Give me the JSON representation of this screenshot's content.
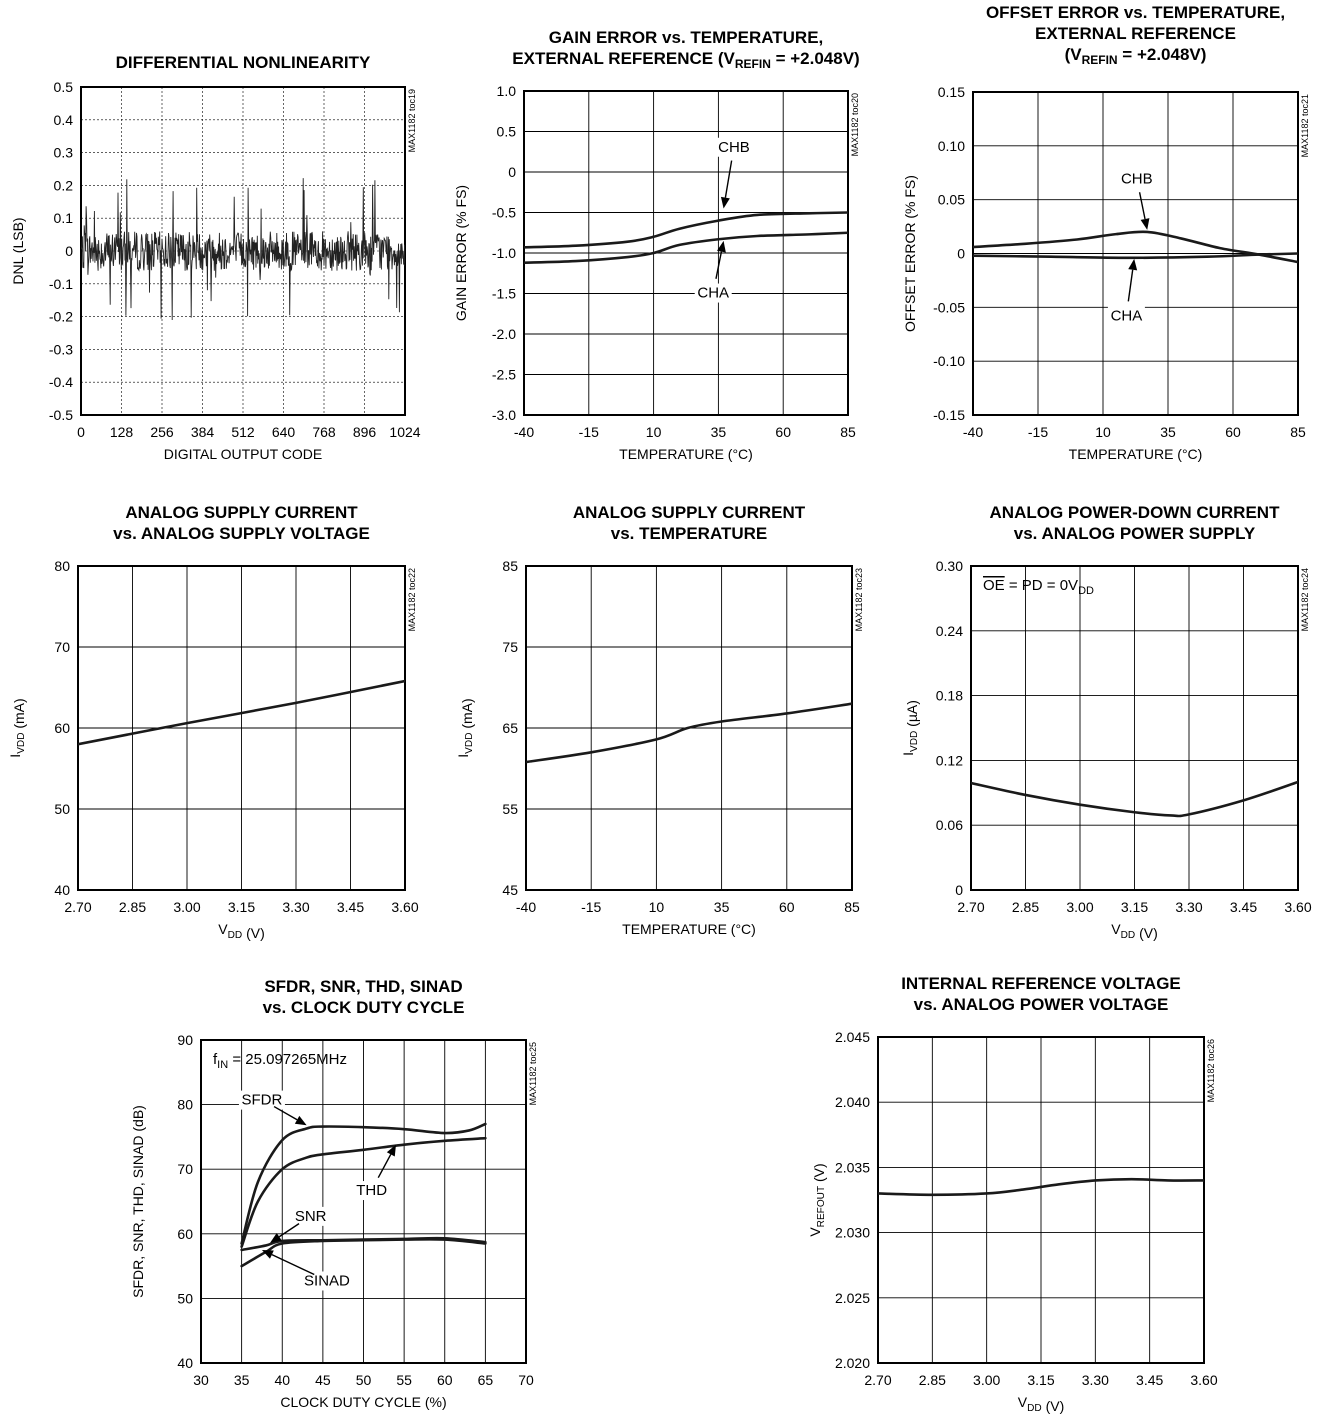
{
  "chart_data": [
    {
      "type": "line",
      "title": [
        "DIFFERENTIAL NONLINEARITY"
      ],
      "xlabel": "DIGITAL OUTPUT CODE",
      "ylabel": "DNL (LSB)",
      "xlim": [
        0,
        1024
      ],
      "ylim": [
        -0.5,
        0.5
      ],
      "xticks": [
        0,
        128,
        256,
        384,
        512,
        640,
        768,
        896,
        1024
      ],
      "xtick_labels": [
        "0",
        "128",
        "256",
        "384",
        "512",
        "640",
        "768",
        "896",
        "1024"
      ],
      "yticks": [
        -0.5,
        -0.4,
        -0.3,
        -0.2,
        -0.1,
        0,
        0.1,
        0.2,
        0.3,
        0.4,
        0.5
      ],
      "ytick_labels": [
        "-0.5",
        "-0.4",
        "-0.3",
        "-0.2",
        "-0.1",
        "0",
        "0.1",
        "0.2",
        "0.3",
        "0.4",
        "0.5"
      ],
      "grid": "dotted",
      "side_label": "MAX1182 toc19",
      "noise_band": {
        "typical_amplitude": 0.06,
        "max": 0.25,
        "min": -0.25
      }
    },
    {
      "type": "line",
      "title": [
        "GAIN ERROR vs. TEMPERATURE,",
        "EXTERNAL REFERENCE (VREFIN = +2.048V)"
      ],
      "xlabel": "TEMPERATURE (°C)",
      "ylabel": "GAIN ERROR (% FS)",
      "xlim": [
        -40,
        85
      ],
      "ylim": [
        -3.0,
        1.0
      ],
      "xticks": [
        -40,
        -15,
        10,
        35,
        60,
        85
      ],
      "xtick_labels": [
        "-40",
        "-15",
        "10",
        "35",
        "60",
        "85"
      ],
      "yticks": [
        -3.0,
        -2.5,
        -2.0,
        -1.5,
        -1.0,
        -0.5,
        0,
        0.5,
        1.0
      ],
      "ytick_labels": [
        "-3.0",
        "-2.5",
        "-2.0",
        "-1.5",
        "-1.0",
        "-0.5",
        "0",
        "0.5",
        "1.0"
      ],
      "grid": "solid",
      "side_label": "MAX1182 toc20",
      "series": [
        {
          "name": "CHB",
          "x": [
            -40,
            -20,
            0,
            10,
            20,
            35,
            50,
            70,
            85
          ],
          "values": [
            -0.93,
            -0.91,
            -0.86,
            -0.8,
            -0.7,
            -0.6,
            -0.53,
            -0.51,
            -0.5
          ]
        },
        {
          "name": "CHA",
          "x": [
            -40,
            -20,
            0,
            10,
            20,
            35,
            50,
            70,
            85
          ],
          "values": [
            -1.12,
            -1.1,
            -1.05,
            -1.0,
            -0.9,
            -0.83,
            -0.79,
            -0.77,
            -0.75
          ]
        }
      ],
      "annotations": [
        {
          "text": "CHB",
          "at": [
            41,
            0.25
          ],
          "arrow_to": [
            37,
            -0.45
          ]
        },
        {
          "text": "CHA",
          "at": [
            33,
            -1.55
          ],
          "arrow_to": [
            37,
            -0.85
          ]
        }
      ]
    },
    {
      "type": "line",
      "title": [
        "OFFSET ERROR vs. TEMPERATURE,",
        "EXTERNAL REFERENCE",
        "(VREFIN = +2.048V)"
      ],
      "xlabel": "TEMPERATURE (°C)",
      "ylabel": "OFFSET ERROR (% FS)",
      "xlim": [
        -40,
        85
      ],
      "ylim": [
        -0.15,
        0.15
      ],
      "xticks": [
        -40,
        -15,
        10,
        35,
        60,
        85
      ],
      "xtick_labels": [
        "-40",
        "-15",
        "10",
        "35",
        "60",
        "85"
      ],
      "yticks": [
        -0.15,
        -0.1,
        -0.05,
        0,
        0.05,
        0.1,
        0.15
      ],
      "ytick_labels": [
        "-0.15",
        "-0.10",
        "-0.05",
        "0",
        "0.05",
        "0.10",
        "0.15"
      ],
      "grid": "solid",
      "side_label": "MAX1182 toc21",
      "series": [
        {
          "name": "CHB",
          "x": [
            -40,
            -20,
            0,
            15,
            27,
            40,
            55,
            70,
            85
          ],
          "values": [
            0.006,
            0.009,
            0.013,
            0.018,
            0.02,
            0.014,
            0.005,
            -0.001,
            -0.008
          ]
        },
        {
          "name": "CHA",
          "x": [
            -40,
            -10,
            20,
            50,
            70,
            85
          ],
          "values": [
            -0.002,
            -0.003,
            -0.004,
            -0.003,
            -0.001,
            0.0
          ]
        }
      ],
      "annotations": [
        {
          "text": "CHB",
          "at": [
            23,
            0.065
          ],
          "arrow_to": [
            27,
            0.022
          ]
        },
        {
          "text": "CHA",
          "at": [
            19,
            -0.062
          ],
          "arrow_to": [
            22,
            -0.005
          ]
        }
      ]
    },
    {
      "type": "line",
      "title": [
        "ANALOG SUPPLY CURRENT",
        "vs. ANALOG SUPPLY VOLTAGE"
      ],
      "xlabel": "VDD (V)",
      "ylabel": "IVDD (mA)",
      "xlim": [
        2.7,
        3.6
      ],
      "ylim": [
        40,
        80
      ],
      "xticks": [
        2.7,
        2.85,
        3.0,
        3.15,
        3.3,
        3.45,
        3.6
      ],
      "xtick_labels": [
        "2.70",
        "2.85",
        "3.00",
        "3.15",
        "3.30",
        "3.45",
        "3.60"
      ],
      "yticks": [
        40,
        50,
        60,
        70,
        80
      ],
      "ytick_labels": [
        "40",
        "50",
        "60",
        "70",
        "80"
      ],
      "grid": "solid",
      "side_label": "MAX1182 toc22",
      "series": [
        {
          "x": [
            2.7,
            3.0,
            3.3,
            3.6
          ],
          "values": [
            58.0,
            60.6,
            63.1,
            65.8
          ]
        }
      ]
    },
    {
      "type": "line",
      "title": [
        "ANALOG SUPPLY CURRENT",
        "vs. TEMPERATURE"
      ],
      "xlabel": "TEMPERATURE (°C)",
      "ylabel": "IVDD (mA)",
      "xlim": [
        -40,
        85
      ],
      "ylim": [
        45,
        85
      ],
      "xticks": [
        -40,
        -15,
        10,
        35,
        60,
        85
      ],
      "xtick_labels": [
        "-40",
        "-15",
        "10",
        "35",
        "60",
        "85"
      ],
      "yticks": [
        45,
        55,
        65,
        75,
        85
      ],
      "ytick_labels": [
        "45",
        "55",
        "65",
        "75",
        "85"
      ],
      "grid": "solid",
      "side_label": "MAX1182 toc23",
      "series": [
        {
          "x": [
            -40,
            -15,
            10,
            22,
            35,
            60,
            85
          ],
          "values": [
            60.8,
            62.0,
            63.6,
            65.0,
            65.8,
            66.8,
            68.0
          ]
        }
      ]
    },
    {
      "type": "line",
      "title": [
        "ANALOG POWER-DOWN CURRENT",
        "vs. ANALOG POWER SUPPLY"
      ],
      "xlabel": "VDD (V)",
      "ylabel": "IVDD (µA)",
      "xlim": [
        2.7,
        3.6
      ],
      "ylim": [
        0,
        0.3
      ],
      "xticks": [
        2.7,
        2.85,
        3.0,
        3.15,
        3.3,
        3.45,
        3.6
      ],
      "xtick_labels": [
        "2.70",
        "2.85",
        "3.00",
        "3.15",
        "3.30",
        "3.45",
        "3.60"
      ],
      "yticks": [
        0,
        0.06,
        0.12,
        0.18,
        0.24,
        0.3
      ],
      "ytick_labels": [
        "0",
        "0.06",
        "0.12",
        "0.18",
        "0.24",
        "0.30"
      ],
      "grid": "solid",
      "side_label": "MAX1182 toc24",
      "condition": "OE = PD = 0VDD",
      "series": [
        {
          "x": [
            2.7,
            2.85,
            3.0,
            3.15,
            3.25,
            3.3,
            3.45,
            3.6
          ],
          "values": [
            0.099,
            0.088,
            0.079,
            0.072,
            0.069,
            0.07,
            0.083,
            0.1
          ]
        }
      ]
    },
    {
      "type": "line",
      "title": [
        "SFDR, SNR, THD, SINAD",
        "vs. CLOCK DUTY CYCLE"
      ],
      "xlabel": "CLOCK DUTY CYCLE (%)",
      "ylabel": "SFDR, SNR, THD, SINAD (dB)",
      "xlim": [
        30,
        70
      ],
      "ylim": [
        40,
        90
      ],
      "xticks": [
        30,
        35,
        40,
        45,
        50,
        55,
        60,
        65,
        70
      ],
      "xtick_labels": [
        "30",
        "35",
        "40",
        "45",
        "50",
        "55",
        "60",
        "65",
        "70"
      ],
      "yticks": [
        40,
        50,
        60,
        70,
        80,
        90
      ],
      "ytick_labels": [
        "40",
        "50",
        "60",
        "70",
        "80",
        "90"
      ],
      "grid": "solid",
      "side_label": "MAX1182 toc25",
      "condition": "fIN = 25.097265MHz",
      "series": [
        {
          "name": "SFDR",
          "x": [
            35,
            37,
            40,
            43,
            45,
            50,
            55,
            60,
            63,
            65
          ],
          "values": [
            58.5,
            68,
            74.5,
            76.3,
            76.6,
            76.5,
            76.2,
            75.6,
            76.0,
            77.0
          ]
        },
        {
          "name": "THD",
          "x": [
            35,
            37,
            40,
            43,
            45,
            50,
            55,
            60,
            65
          ],
          "values": [
            58,
            65,
            70,
            71.8,
            72.3,
            73.0,
            73.8,
            74.4,
            74.8
          ]
        },
        {
          "name": "SNR",
          "x": [
            35,
            38,
            40,
            45,
            50,
            55,
            60,
            65
          ],
          "values": [
            57.5,
            58.2,
            58.9,
            59.0,
            59.1,
            59.2,
            59.3,
            58.7
          ]
        },
        {
          "name": "SINAD",
          "x": [
            35,
            38,
            40,
            45,
            50,
            55,
            60,
            65
          ],
          "values": [
            55.0,
            57.2,
            58.5,
            58.9,
            59.0,
            59.1,
            59.1,
            58.5
          ]
        }
      ],
      "annotations": [
        {
          "text": "SFDR",
          "at": [
            37.5,
            80
          ],
          "arrow_to": [
            43,
            76.8
          ]
        },
        {
          "text": "THD",
          "at": [
            51,
            66
          ],
          "arrow_to": [
            54,
            73.8
          ]
        },
        {
          "text": "SNR",
          "at": [
            43.5,
            62
          ],
          "arrow_to": [
            38.5,
            58.6
          ]
        },
        {
          "text": "SINAD",
          "at": [
            45.5,
            52
          ],
          "arrow_to": [
            37.5,
            57.5
          ]
        }
      ]
    },
    {
      "type": "line",
      "title": [
        "INTERNAL REFERENCE VOLTAGE",
        "vs. ANALOG POWER VOLTAGE"
      ],
      "xlabel": "VDD (V)",
      "ylabel": "VREFOUT (V)",
      "xlim": [
        2.7,
        3.6
      ],
      "ylim": [
        2.02,
        2.045
      ],
      "xticks": [
        2.7,
        2.85,
        3.0,
        3.15,
        3.3,
        3.45,
        3.6
      ],
      "xtick_labels": [
        "2.70",
        "2.85",
        "3.00",
        "3.15",
        "3.30",
        "3.45",
        "3.60"
      ],
      "yticks": [
        2.02,
        2.025,
        2.03,
        2.035,
        2.04,
        2.045
      ],
      "ytick_labels": [
        "2.020",
        "2.025",
        "2.030",
        "2.035",
        "2.040",
        "2.045"
      ],
      "grid": "solid",
      "side_label": "MAX1182 toc26",
      "series": [
        {
          "x": [
            2.7,
            2.85,
            3.0,
            3.1,
            3.2,
            3.3,
            3.4,
            3.5,
            3.6
          ],
          "values": [
            2.033,
            2.0329,
            2.033,
            2.0333,
            2.0337,
            2.034,
            2.0341,
            2.034,
            2.034
          ]
        }
      ]
    }
  ]
}
